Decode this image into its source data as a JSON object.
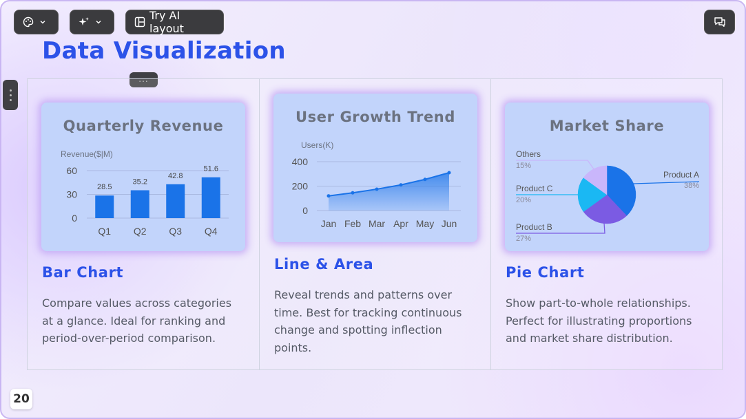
{
  "toolbar": {
    "ai_layout_label": "Try AI layout"
  },
  "slide": {
    "title": "Data Visualization",
    "handle_label": "...",
    "page_number": "20"
  },
  "cards": [
    {
      "heading": "Bar Chart",
      "description": "Compare values across categories at a glance. Ideal for ranking and period-over-period comparison."
    },
    {
      "heading": "Line & Area",
      "description": "Reveal trends and patterns over time. Best for tracking continuous change and spotting inflection points."
    },
    {
      "heading": "Pie Chart",
      "description": "Show part-to-whole relationships. Perfect for illustrating proportions and market share distribution."
    }
  ],
  "colors": {
    "accent": "#2c52e8",
    "bar": "#1a73e8",
    "card_bg": "#c2d4fb"
  },
  "chart_data": [
    {
      "type": "bar",
      "title": "Quarterly Revenue",
      "ylabel": "Revenue($|M)",
      "categories": [
        "Q1",
        "Q2",
        "Q3",
        "Q4"
      ],
      "values": [
        28.5,
        35.2,
        42.8,
        51.6
      ],
      "value_labels": [
        "28.5",
        "35.2",
        "42.8",
        "51.6"
      ],
      "yticks": [
        0,
        30,
        60
      ],
      "ylim": [
        0,
        60
      ],
      "grid": true
    },
    {
      "type": "area",
      "title": "User Growth Trend",
      "ylabel": "Users(K)",
      "categories": [
        "Jan",
        "Feb",
        "Mar",
        "Apr",
        "May",
        "Jun"
      ],
      "values": [
        120,
        145,
        175,
        210,
        255,
        310
      ],
      "yticks": [
        0,
        200,
        400
      ],
      "ylim": [
        0,
        400
      ],
      "grid": true
    },
    {
      "type": "pie",
      "title": "Market Share",
      "slices": [
        {
          "name": "Product A",
          "value": 38,
          "label": "38%",
          "color": "#1a73e8"
        },
        {
          "name": "Product B",
          "value": 27,
          "label": "27%",
          "color": "#7b5be3"
        },
        {
          "name": "Product C",
          "value": 20,
          "label": "20%",
          "color": "#1ab8f3"
        },
        {
          "name": "Others",
          "value": 15,
          "label": "15%",
          "color": "#c9b6fb"
        }
      ]
    }
  ]
}
